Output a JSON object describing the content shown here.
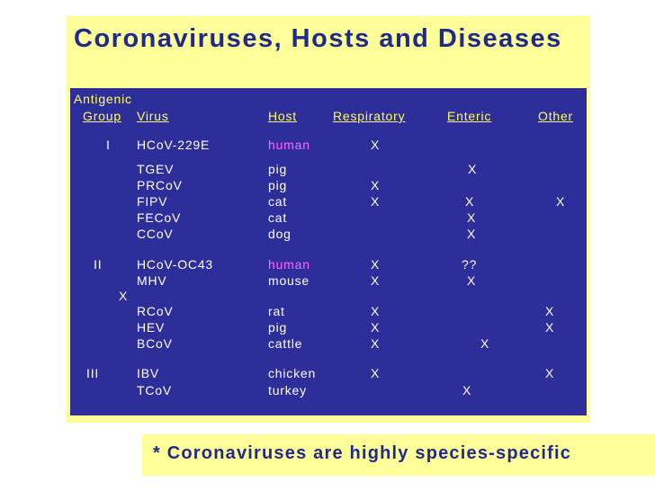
{
  "title": "Coronaviruses, Hosts and Diseases",
  "table": {
    "antigenic_label": "Antigenic",
    "headers": {
      "group": "Group",
      "virus": "Virus",
      "host": "Host",
      "respiratory": "Respiratory",
      "enteric": "Enteric",
      "other": "Other"
    },
    "rows": [
      {
        "group": "I",
        "virus": "HCoV-229E",
        "host": "human",
        "respiratory": "X",
        "enteric": "",
        "other": ""
      },
      {
        "group": "",
        "virus": "TGEV",
        "host": "pig",
        "respiratory": "",
        "enteric": "X",
        "other": ""
      },
      {
        "group": "",
        "virus": "PRCoV",
        "host": "pig",
        "respiratory": "X",
        "enteric": "",
        "other": ""
      },
      {
        "group": "",
        "virus": "FIPV",
        "host": "cat",
        "respiratory": "X",
        "enteric": "X",
        "other": "X"
      },
      {
        "group": "",
        "virus": "FECoV",
        "host": "cat",
        "respiratory": "",
        "enteric": "X",
        "other": ""
      },
      {
        "group": "",
        "virus": "CCoV",
        "host": "dog",
        "respiratory": "",
        "enteric": "X",
        "other": ""
      },
      {
        "group": "II",
        "virus": "HCoV-OC43",
        "host": "human",
        "respiratory": "X",
        "enteric": "??",
        "other": ""
      },
      {
        "group": "",
        "virus": "MHV",
        "host": "mouse",
        "respiratory": "X",
        "enteric": "X",
        "other": ""
      },
      {
        "group": "X",
        "virus": "",
        "host": "",
        "respiratory": "",
        "enteric": "",
        "other": ""
      },
      {
        "group": "",
        "virus": "RCoV",
        "host": "rat",
        "respiratory": "X",
        "enteric": "",
        "other": "X"
      },
      {
        "group": "",
        "virus": "HEV",
        "host": "pig",
        "respiratory": "X",
        "enteric": "",
        "other": "X"
      },
      {
        "group": "",
        "virus": "BCoV",
        "host": "cattle",
        "respiratory": "X",
        "enteric": "X",
        "other": ""
      },
      {
        "group": "III",
        "virus": "IBV",
        "host": "chicken",
        "respiratory": "X",
        "enteric": "",
        "other": "X"
      },
      {
        "group": "",
        "virus": "TCoV",
        "host": "turkey",
        "respiratory": "",
        "enteric": "X",
        "other": ""
      }
    ]
  },
  "footnote": "* Coronaviruses are highly species-specific",
  "colors": {
    "title_bg": "#ffff99",
    "title_text": "#1f2a8a",
    "table_bg": "#2e2e9a",
    "header_text": "#ffff66",
    "body_text": "#ffffff",
    "human_host": "#ff66ff"
  }
}
